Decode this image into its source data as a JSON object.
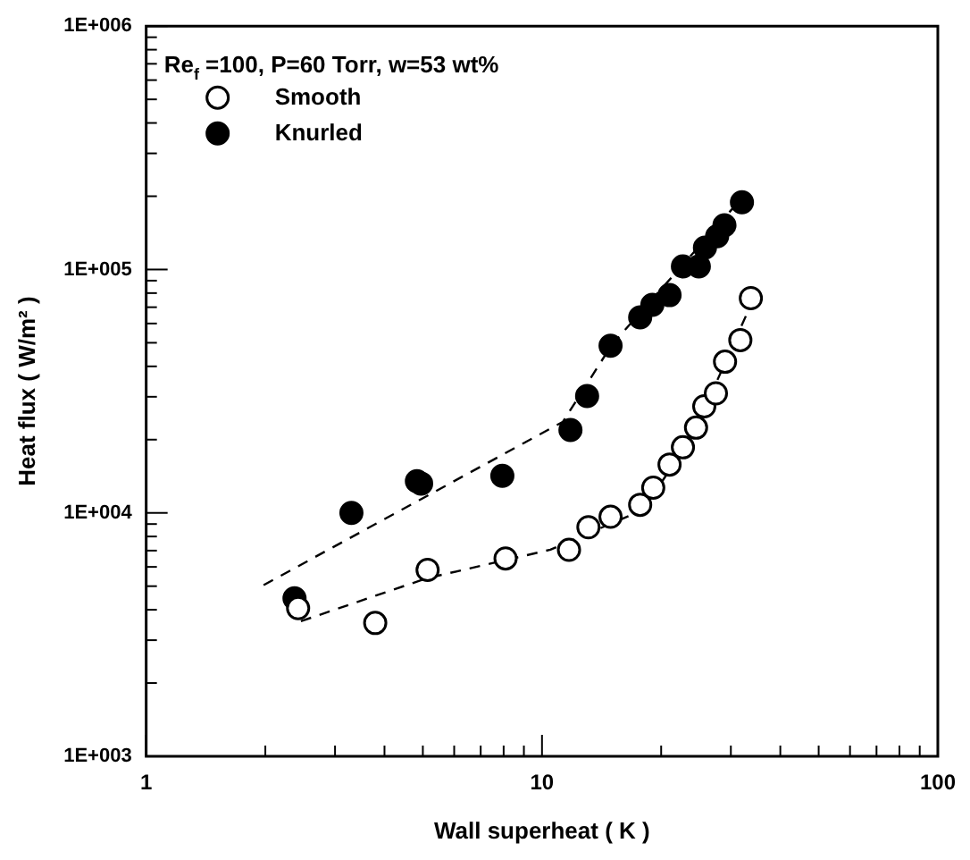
{
  "chart_data": {
    "type": "scatter",
    "xlabel": "Wall superheat ( K )",
    "ylabel": "Heat flux ( W/m² )",
    "log": "xy",
    "xlim": [
      1,
      100
    ],
    "xticks": [
      1,
      10,
      100
    ],
    "ylim": [
      1000,
      1000000
    ],
    "yticks": [
      {
        "value": 1000,
        "label": "1E+003"
      },
      {
        "value": 10000,
        "label": "1E+004"
      },
      {
        "value": 100000,
        "label": "1E+005"
      },
      {
        "value": 1000000,
        "label": "1E+006"
      }
    ],
    "grid": false,
    "legend": "top left",
    "marker": "circle",
    "annotations": [
      "Re$_{f}$ =100, P=60 Torr, w=53 wt%"
    ],
    "series": [
      {
        "name": "Smooth",
        "color": "#ffffff",
        "x": [
          2.42,
          3.79,
          5.14,
          8.09,
          11.7,
          13.1,
          14.9,
          17.7,
          19.1,
          21.0,
          22.7,
          24.5,
          25.7,
          27.5,
          29.0,
          31.7,
          33.7
        ],
        "values": [
          4060,
          3530,
          5830,
          6500,
          7050,
          8730,
          9640,
          10800,
          12700,
          15800,
          18600,
          22400,
          27400,
          31000,
          41800,
          51300,
          76300
        ]
      },
      {
        "name": "Knurled",
        "color": "#000000",
        "x": [
          2.37,
          3.3,
          4.83,
          4.95,
          7.94,
          11.8,
          13.0,
          14.9,
          17.7,
          19.0,
          21.0,
          22.7,
          24.9,
          25.8,
          27.7,
          28.9,
          32.0
        ],
        "values": [
          4460,
          10000,
          13500,
          13200,
          14200,
          21900,
          30200,
          48600,
          63600,
          71600,
          78500,
          103000,
          103000,
          123000,
          137000,
          152000,
          189000
        ]
      },
      {
        "type": "line",
        "color": "#000000",
        "line_style": "dashed",
        "marker": "none",
        "x": [
          1.98,
          11.3,
          15.0,
          31.4
        ],
        "values": [
          5050,
          23700,
          49000,
          190000
        ]
      },
      {
        "type": "line",
        "color": "#000000",
        "line_style": "dashed",
        "marker": "none",
        "x": [
          2.46,
          5.1,
          10.5,
          18.0,
          24.0,
          33.7
        ],
        "values": [
          3590,
          5380,
          7060,
          10300,
          20700,
          71600
        ]
      }
    ]
  }
}
